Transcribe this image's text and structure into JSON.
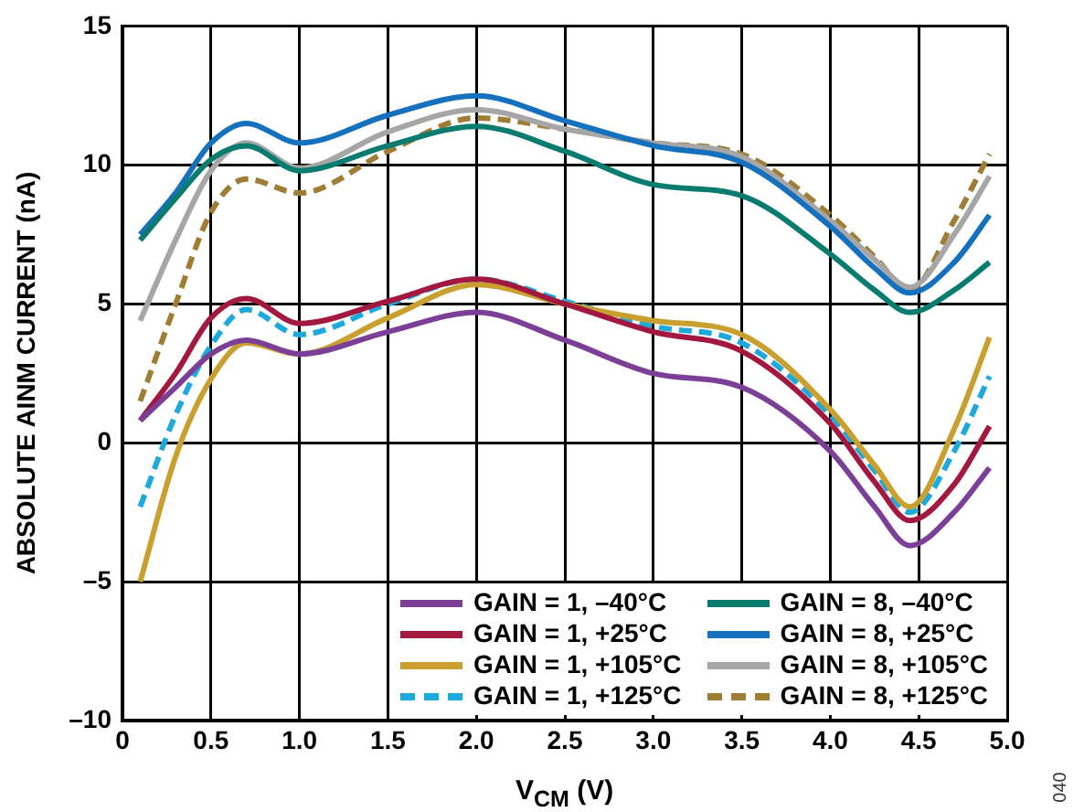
{
  "chart_data": {
    "type": "line",
    "xlabel": "V$_{CM}$ (V)",
    "ylabel": "ABSOLUTE AINM CURRENT (nA)",
    "x": [
      0.1,
      0.3,
      0.5,
      0.7,
      1.0,
      1.5,
      2.0,
      2.5,
      3.0,
      3.5,
      4.0,
      4.25,
      4.45,
      4.7,
      4.9
    ],
    "xlim": [
      0,
      5
    ],
    "xticks": [
      0,
      0.5,
      {
        "value": 1,
        "label": "1.0"
      },
      1.5,
      {
        "value": 2,
        "label": "2.0"
      },
      2.5,
      {
        "value": 3,
        "label": "3.0"
      },
      3.5,
      {
        "value": 4,
        "label": "4.0"
      },
      4.5,
      {
        "value": 5,
        "label": "5.0"
      }
    ],
    "ylim": [
      -10,
      15
    ],
    "yticks": [
      {
        "value": -10,
        "label": "–10"
      },
      {
        "value": -5,
        "label": "–5"
      },
      0,
      5,
      10,
      15
    ],
    "grid": true,
    "legend": "bottom right",
    "marker": "none",
    "series": [
      {
        "name": "GAIN = 1, –40°C",
        "color": "#7b3f98",
        "line_style": "solid",
        "values": [
          0.8,
          2.0,
          3.2,
          3.7,
          3.2,
          4.0,
          4.7,
          3.7,
          2.5,
          2.0,
          -0.3,
          -2.3,
          -3.7,
          -2.5,
          -0.9
        ]
      },
      {
        "name": "GAIN = 1, +25°C",
        "color": "#a3183f",
        "line_style": "solid",
        "values": [
          0.8,
          2.5,
          4.5,
          5.2,
          4.3,
          5.1,
          5.9,
          5.0,
          4.0,
          3.3,
          0.7,
          -1.4,
          -2.8,
          -1.5,
          0.6
        ]
      },
      {
        "name": "GAIN = 1, +105°C",
        "color": "#c9a030",
        "line_style": "solid",
        "values": [
          -5.0,
          -0.5,
          2.3,
          3.6,
          3.2,
          4.5,
          5.7,
          5.0,
          4.4,
          3.9,
          1.2,
          -0.8,
          -2.3,
          0.5,
          3.8
        ]
      },
      {
        "name": "GAIN = 1, +125°C",
        "color": "#1ea9dc",
        "line_style": "dashed",
        "values": [
          -2.3,
          1.0,
          3.5,
          4.8,
          3.9,
          5.0,
          5.9,
          5.1,
          4.2,
          3.6,
          1.0,
          -1.0,
          -2.5,
          -0.3,
          2.4
        ]
      },
      {
        "name": "GAIN = 8, –40°C",
        "color": "#0a7b6f",
        "line_style": "solid",
        "values": [
          7.3,
          8.8,
          10.2,
          10.7,
          9.8,
          10.7,
          11.4,
          10.5,
          9.3,
          8.9,
          6.8,
          5.5,
          4.7,
          5.5,
          6.5
        ]
      },
      {
        "name": "GAIN = 8, +25°C",
        "color": "#1570bd",
        "line_style": "solid",
        "values": [
          7.5,
          9.0,
          10.8,
          11.5,
          10.8,
          11.8,
          12.5,
          11.6,
          10.7,
          10.1,
          7.8,
          6.3,
          5.4,
          6.5,
          8.2
        ]
      },
      {
        "name": "GAIN = 8, +105°C",
        "color": "#a6a6a6",
        "line_style": "solid",
        "values": [
          4.4,
          7.3,
          9.8,
          10.8,
          9.9,
          11.2,
          12.0,
          11.3,
          10.8,
          10.3,
          8.0,
          6.6,
          5.6,
          7.5,
          9.6
        ]
      },
      {
        "name": "GAIN = 8, +125°C",
        "color": "#a07d35",
        "line_style": "dashed",
        "values": [
          1.5,
          5.0,
          8.3,
          9.5,
          9.0,
          10.5,
          11.7,
          11.3,
          10.8,
          10.4,
          8.2,
          6.7,
          5.5,
          8.0,
          10.4
        ]
      }
    ],
    "annotations": [
      "040"
    ]
  }
}
